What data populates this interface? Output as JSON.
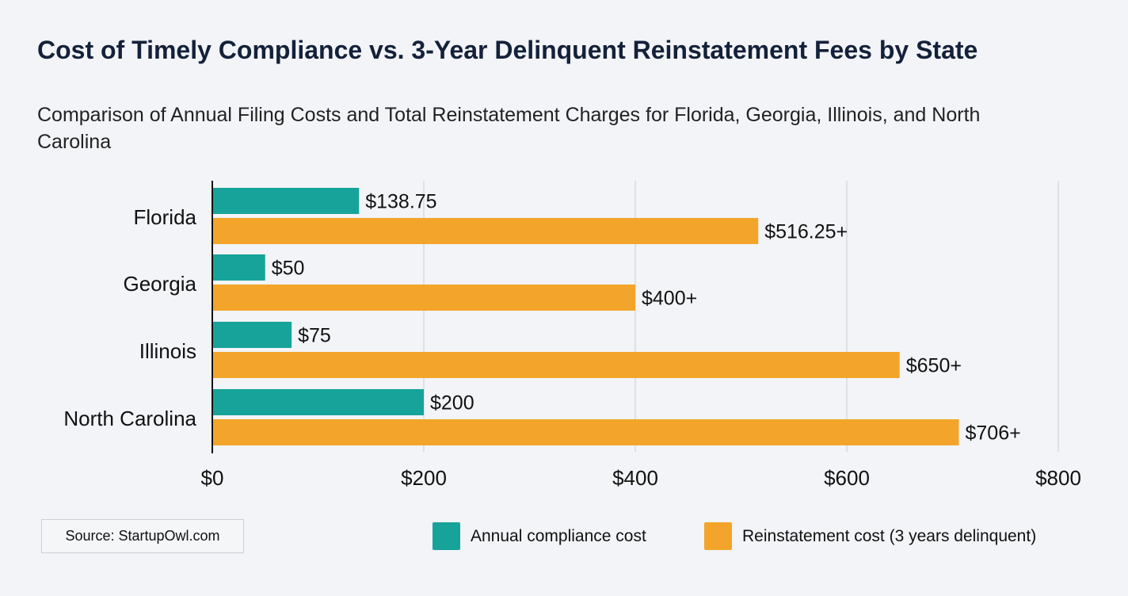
{
  "chart_data": {
    "type": "bar",
    "orientation": "horizontal",
    "title": "Cost of Timely Compliance vs. 3-Year Delinquent Reinstatement Fees by State",
    "subtitle": "Comparison of Annual Filing Costs and Total Reinstatement Charges for Florida, Georgia, Illinois, and North Carolina",
    "categories": [
      "Florida",
      "Georgia",
      "Illinois",
      "North Carolina"
    ],
    "series": [
      {
        "name": "Annual compliance cost",
        "color": "#17a39a",
        "values": [
          138.75,
          50,
          75,
          200
        ],
        "labels": [
          "$138.75",
          "$50",
          "$75",
          "$200"
        ]
      },
      {
        "name": "Reinstatement cost (3 years delinquent)",
        "color": "#f2a52a",
        "values": [
          516.25,
          400,
          650,
          706
        ],
        "labels": [
          "$516.25+",
          "$400+",
          "$650+",
          "$706+"
        ]
      }
    ],
    "xlim": [
      0,
      800
    ],
    "xticks": [
      0,
      200,
      400,
      600,
      800
    ],
    "xtick_labels": [
      "$0",
      "$200",
      "$400",
      "$600",
      "$800"
    ],
    "grid": "vertical",
    "legend": "bottom-right",
    "source": "Source: StartupOwl.com"
  }
}
